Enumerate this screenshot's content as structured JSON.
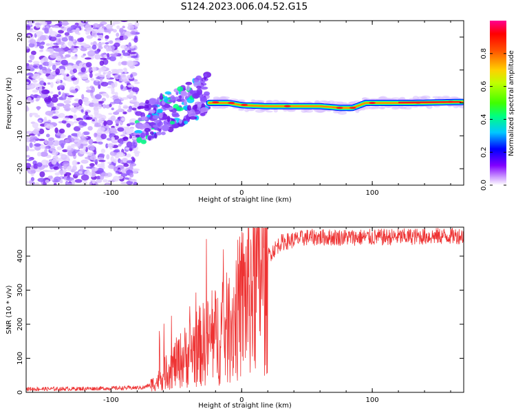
{
  "figure": {
    "title": "S124.2023.006.04.52.G15"
  },
  "chart_data": [
    {
      "type": "heatmap",
      "title": "",
      "xlabel": "Height of straight line (km)",
      "ylabel": "Frequency (Hz)",
      "xlim": [
        -165,
        170
      ],
      "ylim": [
        -25,
        25
      ],
      "x_ticks": [
        -100,
        0,
        100
      ],
      "y_ticks": [
        -20,
        -10,
        0,
        10,
        20
      ],
      "colorbar": {
        "label": "Normalized spectral amplitude",
        "range": [
          0.0,
          1.0
        ],
        "ticks": [
          0.0,
          0.2,
          0.4,
          0.6,
          0.8
        ],
        "colormap": [
          "#ffffff",
          "#cc99ff",
          "#8000ff",
          "#0000ff",
          "#00c0ff",
          "#00ff80",
          "#80ff00",
          "#ffff00",
          "#ff8000",
          "#ff0000",
          "#ff0080"
        ]
      },
      "description_regions": {
        "noise_x_range": [
          -165,
          -80
        ],
        "transition_x_range": [
          -80,
          -25
        ],
        "tone_x_range": [
          -25,
          170
        ]
      },
      "tone_centerline": [
        {
          "x": -25,
          "y": 0.0
        },
        {
          "x": -10,
          "y": 0.0
        },
        {
          "x": 0,
          "y": -0.7
        },
        {
          "x": 20,
          "y": -1.0
        },
        {
          "x": 60,
          "y": -1.0
        },
        {
          "x": 75,
          "y": -1.5
        },
        {
          "x": 85,
          "y": -1.5
        },
        {
          "x": 95,
          "y": 0.0
        },
        {
          "x": 130,
          "y": 0.0
        },
        {
          "x": 170,
          "y": 0.3
        }
      ]
    },
    {
      "type": "line",
      "title": "",
      "xlabel": "Height of straight line (km)",
      "ylabel": "SNR (10 * v/v)",
      "xlim": [
        -165,
        170
      ],
      "ylim": [
        0,
        485
      ],
      "x_ticks": [
        -100,
        0,
        100
      ],
      "y_ticks": [
        0,
        100,
        200,
        300,
        400
      ],
      "color": "#ee3333",
      "series": [
        {
          "name": "",
          "envelope": [
            {
              "x": -165,
              "y": 10
            },
            {
              "x": -140,
              "y": 10
            },
            {
              "x": -100,
              "y": 12
            },
            {
              "x": -75,
              "y": 14
            },
            {
              "x": -65,
              "y": 30
            },
            {
              "x": -55,
              "y": 70
            },
            {
              "x": -45,
              "y": 100
            },
            {
              "x": -35,
              "y": 130
            },
            {
              "x": -25,
              "y": 150
            },
            {
              "x": -10,
              "y": 190
            },
            {
              "x": 0,
              "y": 260
            },
            {
              "x": 10,
              "y": 340
            },
            {
              "x": 20,
              "y": 400
            },
            {
              "x": 30,
              "y": 440
            },
            {
              "x": 50,
              "y": 455
            },
            {
              "x": 100,
              "y": 455
            },
            {
              "x": 170,
              "y": 460
            }
          ],
          "peaks": [
            {
              "x": -27,
              "y": 450
            },
            {
              "x": -14,
              "y": 420
            },
            {
              "x": -63,
              "y": 180
            }
          ]
        }
      ]
    }
  ]
}
